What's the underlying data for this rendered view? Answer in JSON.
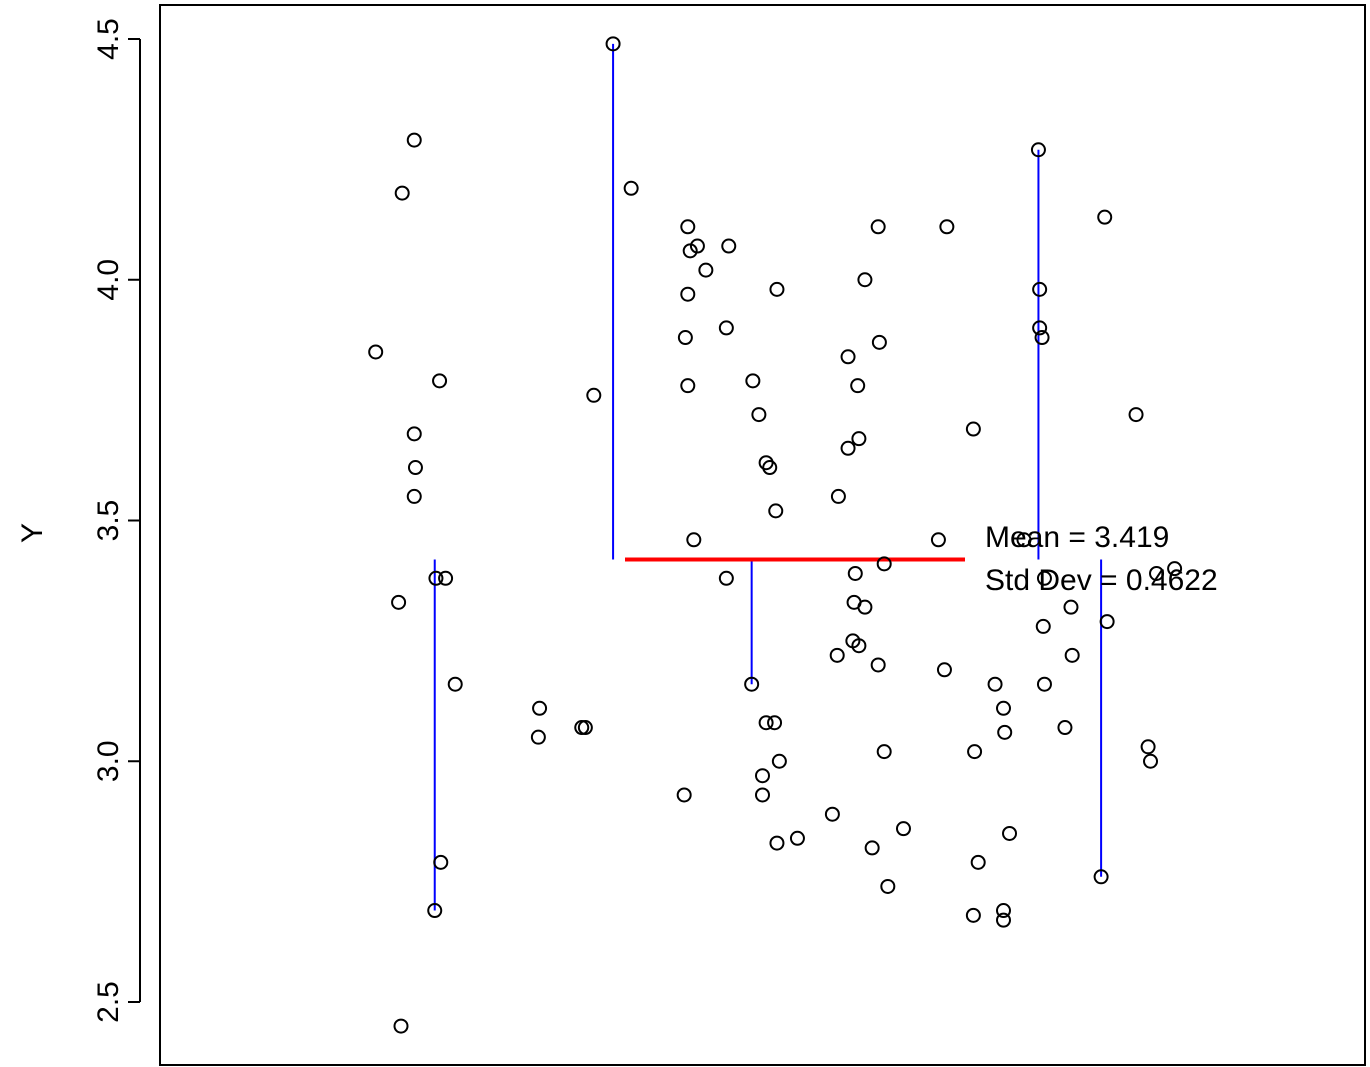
{
  "chart_data": {
    "type": "scatter",
    "title": "",
    "xlabel": "",
    "ylabel": "Y",
    "ylim": [
      2.44,
      4.57
    ],
    "y_ticks": [
      "2.5",
      "3.0",
      "3.5",
      "4.0",
      "4.5"
    ],
    "y_tick_values": [
      2.5,
      3.0,
      3.5,
      4.0,
      4.5
    ],
    "x_axis_shown": false,
    "grid": false,
    "mean": 3.419,
    "std_dev": 0.4622,
    "annotations": [
      "Mean = 3.419",
      "Std Dev = 0.4622"
    ],
    "colors": {
      "points": "#000000",
      "mean_line": "#ff0000",
      "deviation_lines": "#0000ff"
    },
    "mean_line_x_range": [
      0.18,
      1.0
    ],
    "points": [
      [
        0.376,
        4.49
      ],
      [
        0.211,
        4.29
      ],
      [
        0.201,
        4.18
      ],
      [
        0.391,
        4.19
      ],
      [
        0.438,
        4.11
      ],
      [
        0.446,
        4.07
      ],
      [
        0.44,
        4.06
      ],
      [
        0.472,
        4.07
      ],
      [
        0.453,
        4.02
      ],
      [
        0.438,
        3.97
      ],
      [
        0.596,
        4.11
      ],
      [
        0.653,
        4.11
      ],
      [
        0.597,
        3.87
      ],
      [
        0.571,
        3.84
      ],
      [
        0.579,
        3.78
      ],
      [
        0.729,
        4.27
      ],
      [
        0.784,
        4.13
      ],
      [
        0.73,
        3.98
      ],
      [
        0.73,
        3.9
      ],
      [
        0.732,
        3.88
      ],
      [
        0.81,
        3.72
      ],
      [
        0.675,
        3.69
      ],
      [
        0.585,
        4.0
      ],
      [
        0.512,
        3.98
      ],
      [
        0.47,
        3.9
      ],
      [
        0.436,
        3.88
      ],
      [
        0.179,
        3.85
      ],
      [
        0.232,
        3.79
      ],
      [
        0.36,
        3.76
      ],
      [
        0.438,
        3.78
      ],
      [
        0.492,
        3.79
      ],
      [
        0.497,
        3.72
      ],
      [
        0.211,
        3.68
      ],
      [
        0.58,
        3.67
      ],
      [
        0.571,
        3.65
      ],
      [
        0.212,
        3.61
      ],
      [
        0.503,
        3.62
      ],
      [
        0.506,
        3.61
      ],
      [
        0.211,
        3.55
      ],
      [
        0.563,
        3.55
      ],
      [
        0.511,
        3.52
      ],
      [
        0.443,
        3.46
      ],
      [
        0.646,
        3.46
      ],
      [
        0.717,
        3.46
      ],
      [
        0.229,
        3.38
      ],
      [
        0.198,
        3.33
      ],
      [
        0.237,
        3.38
      ],
      [
        0.47,
        3.38
      ],
      [
        0.601,
        3.41
      ],
      [
        0.577,
        3.39
      ],
      [
        0.827,
        3.39
      ],
      [
        0.842,
        3.4
      ],
      [
        0.734,
        3.38
      ],
      [
        0.576,
        3.33
      ],
      [
        0.585,
        3.32
      ],
      [
        0.756,
        3.32
      ],
      [
        0.733,
        3.28
      ],
      [
        0.786,
        3.29
      ],
      [
        0.575,
        3.25
      ],
      [
        0.58,
        3.24
      ],
      [
        0.562,
        3.22
      ],
      [
        0.596,
        3.2
      ],
      [
        0.651,
        3.19
      ],
      [
        0.757,
        3.22
      ],
      [
        0.245,
        3.16
      ],
      [
        0.491,
        3.16
      ],
      [
        0.693,
        3.16
      ],
      [
        0.734,
        3.16
      ],
      [
        0.315,
        3.11
      ],
      [
        0.35,
        3.07
      ],
      [
        0.503,
        3.08
      ],
      [
        0.51,
        3.08
      ],
      [
        0.7,
        3.11
      ],
      [
        0.751,
        3.07
      ],
      [
        0.314,
        3.05
      ],
      [
        0.353,
        3.07
      ],
      [
        0.701,
        3.06
      ],
      [
        0.676,
        3.02
      ],
      [
        0.601,
        3.02
      ],
      [
        0.82,
        3.03
      ],
      [
        0.822,
        3.0
      ],
      [
        0.514,
        3.0
      ],
      [
        0.5,
        2.97
      ],
      [
        0.435,
        2.93
      ],
      [
        0.5,
        2.93
      ],
      [
        0.558,
        2.89
      ],
      [
        0.529,
        2.84
      ],
      [
        0.512,
        2.83
      ],
      [
        0.617,
        2.86
      ],
      [
        0.591,
        2.82
      ],
      [
        0.705,
        2.85
      ],
      [
        0.679,
        2.79
      ],
      [
        0.233,
        2.79
      ],
      [
        0.228,
        2.69
      ],
      [
        0.781,
        2.76
      ],
      [
        0.604,
        2.74
      ],
      [
        0.7,
        2.69
      ],
      [
        0.675,
        2.68
      ],
      [
        0.7,
        2.67
      ],
      [
        0.2,
        2.45
      ]
    ],
    "deviation_lines": [
      [
        0.376,
        4.49
      ],
      [
        0.729,
        4.27
      ],
      [
        0.491,
        3.16
      ],
      [
        0.228,
        2.69
      ],
      [
        0.781,
        2.76
      ]
    ]
  }
}
